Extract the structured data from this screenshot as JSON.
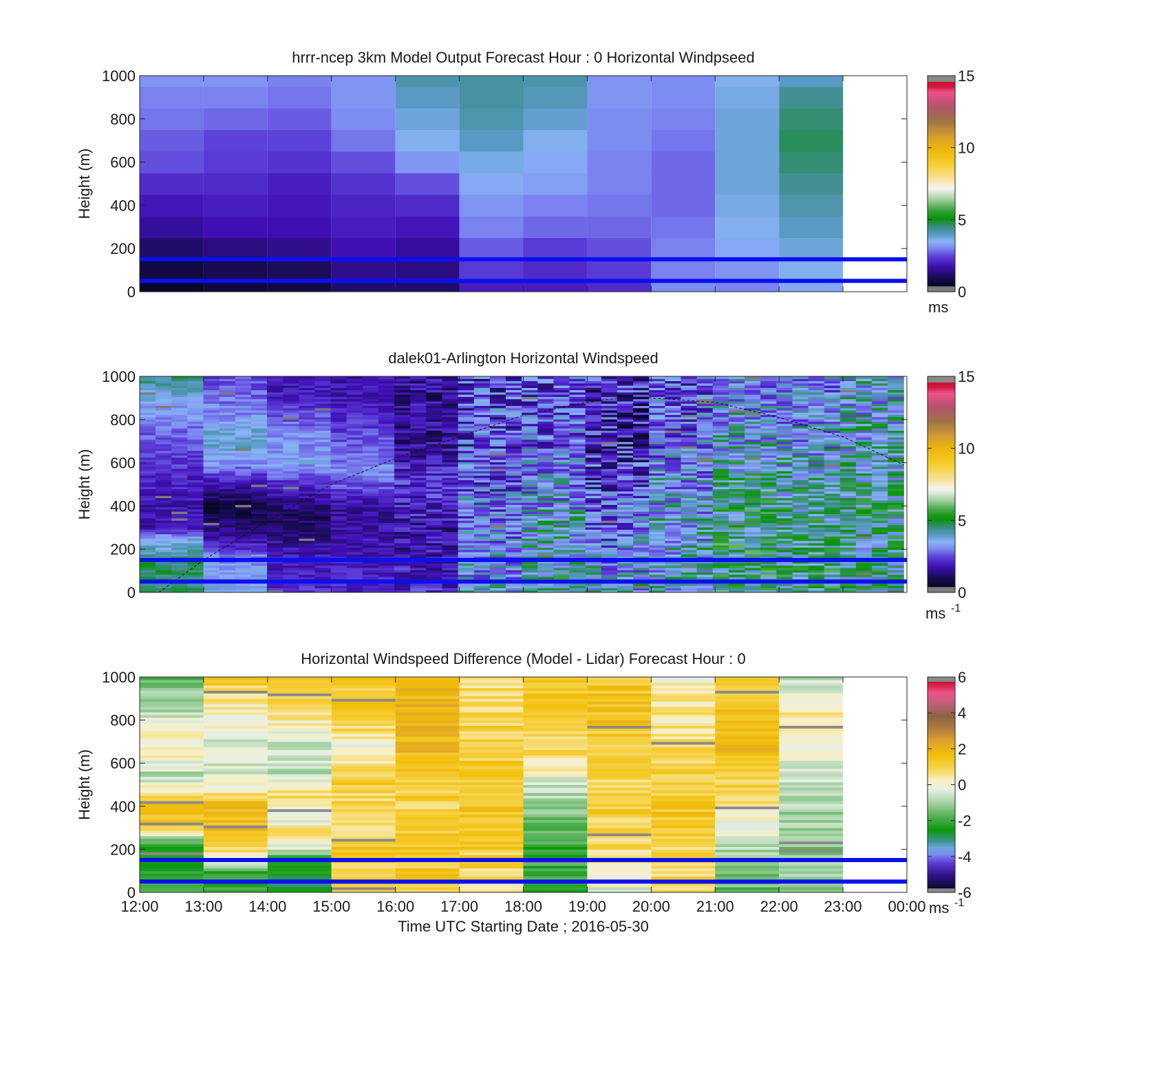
{
  "chart_data": [
    {
      "type": "heatmap",
      "title": "hrrr-ncep 3km Model Output   Forecast Hour : 0 Horizontal Windpseed",
      "xlabel": "",
      "ylabel": "Height (m)",
      "x_ticks": [
        "12:00",
        "13:00",
        "14:00",
        "15:00",
        "16:00",
        "17:00",
        "18:00",
        "19:00",
        "20:00",
        "21:00",
        "22:00",
        "23:00",
        "00:00"
      ],
      "xlim": [
        12,
        24
      ],
      "ylim": [
        0,
        1000
      ],
      "yticks": [
        0,
        200,
        400,
        600,
        800,
        1000
      ],
      "colorbar": {
        "range": [
          0,
          15
        ],
        "ticks": [
          0,
          5,
          10,
          15
        ],
        "unit_base": "ms",
        "unit_sup": ""
      },
      "reference_lines_m": [
        50,
        150
      ],
      "columns": [
        {
          "start_hour": 12,
          "end_hour": 13,
          "values": [
            0.5,
            0.8,
            1.2,
            1.6,
            1.9,
            2.2,
            2.6,
            2.7,
            2.9,
            3.0,
            3.2
          ]
        },
        {
          "start_hour": 13,
          "end_hour": 14,
          "values": [
            0.7,
            1.0,
            1.4,
            1.8,
            2.0,
            2.2,
            2.4,
            2.5,
            2.8,
            3.0,
            3.2
          ]
        },
        {
          "start_hour": 14,
          "end_hour": 15,
          "values": [
            0.8,
            1.1,
            1.5,
            1.8,
            1.9,
            2.0,
            2.3,
            2.5,
            2.7,
            2.9,
            3.0
          ]
        },
        {
          "start_hour": 15,
          "end_hour": 16,
          "values": [
            1.2,
            1.5,
            1.8,
            2.0,
            2.1,
            2.3,
            2.6,
            2.9,
            3.1,
            3.2,
            3.2
          ]
        },
        {
          "start_hour": 16,
          "end_hour": 17,
          "values": [
            1.2,
            1.4,
            1.6,
            1.9,
            2.2,
            2.6,
            3.2,
            3.6,
            3.8,
            4.0,
            4.2
          ]
        },
        {
          "start_hour": 17,
          "end_hour": 18,
          "values": [
            2.0,
            2.4,
            2.7,
            3.0,
            3.2,
            3.4,
            3.7,
            4.0,
            4.2,
            4.3,
            4.3
          ]
        },
        {
          "start_hour": 18,
          "end_hour": 19,
          "values": [
            2.0,
            2.2,
            2.4,
            2.8,
            3.0,
            3.3,
            3.4,
            3.6,
            3.9,
            4.1,
            4.2
          ]
        },
        {
          "start_hour": 19,
          "end_hour": 20,
          "values": [
            2.2,
            2.4,
            2.6,
            2.8,
            2.9,
            3.0,
            3.0,
            3.1,
            3.1,
            3.2,
            3.2
          ]
        },
        {
          "start_hour": 20,
          "end_hour": 21,
          "values": [
            3.1,
            3.0,
            3.0,
            2.9,
            2.8,
            2.8,
            2.8,
            2.9,
            3.0,
            3.1,
            3.1
          ]
        },
        {
          "start_hour": 21,
          "end_hour": 22,
          "values": [
            3.0,
            3.2,
            3.4,
            3.6,
            3.7,
            3.8,
            3.8,
            3.8,
            3.8,
            3.7,
            3.6
          ]
        },
        {
          "start_hour": 22,
          "end_hour": 23,
          "values": [
            3.4,
            3.6,
            3.8,
            4.0,
            4.2,
            4.4,
            4.6,
            4.7,
            4.6,
            4.4,
            4.0
          ]
        }
      ]
    },
    {
      "type": "heatmap",
      "title": "dalek01-Arlington  Horizontal Windspeed",
      "xlabel": "",
      "ylabel": "Height (m)",
      "x_ticks": [
        "12:00",
        "13:00",
        "14:00",
        "15:00",
        "16:00",
        "17:00",
        "18:00",
        "19:00",
        "20:00",
        "21:00",
        "22:00",
        "23:00",
        "00:00"
      ],
      "xlim": [
        12,
        24
      ],
      "ylim": [
        0,
        1000
      ],
      "yticks": [
        0,
        200,
        400,
        600,
        800,
        1000
      ],
      "colorbar": {
        "range": [
          0,
          15
        ],
        "ticks": [
          0,
          5,
          10,
          15
        ],
        "unit_base": "ms",
        "unit_sup": "-1"
      },
      "reference_lines_m": [
        50,
        150
      ],
      "boundary_layer_height": {
        "hours": [
          12.3,
          13.0,
          14.0,
          15.0,
          16.0,
          17.0,
          18.0,
          19.0,
          19.5,
          20.0,
          21.0,
          22.0,
          23.0,
          23.95
        ],
        "heights_m": [
          0,
          150,
          330,
          500,
          620,
          720,
          820,
          880,
          900,
          900,
          880,
          810,
          720,
          590
        ]
      },
      "profile_groups": [
        {
          "start_hour": 12.0,
          "end_hour": 13.0,
          "profile": [
            [
              0,
              4.5
            ],
            [
              120,
              4.8
            ],
            [
              250,
              3.5
            ],
            [
              300,
              1.8
            ],
            [
              420,
              1.8
            ],
            [
              700,
              2.6
            ],
            [
              900,
              3.6
            ],
            [
              1000,
              4.5
            ]
          ]
        },
        {
          "start_hour": 13.0,
          "end_hour": 14.0,
          "profile": [
            [
              0,
              3.6
            ],
            [
              150,
              3.2
            ],
            [
              250,
              1.6
            ],
            [
              400,
              0.8
            ],
            [
              500,
              1.8
            ],
            [
              600,
              3.2
            ],
            [
              700,
              4.0
            ],
            [
              850,
              3.0
            ],
            [
              1000,
              2.5
            ]
          ]
        },
        {
          "start_hour": 14.0,
          "end_hour": 15.0,
          "profile": [
            [
              0,
              2.2
            ],
            [
              200,
              1.8
            ],
            [
              350,
              1.0
            ],
            [
              500,
              2.2
            ],
            [
              600,
              3.4
            ],
            [
              750,
              3.0
            ],
            [
              900,
              2.0
            ],
            [
              1000,
              1.8
            ]
          ]
        },
        {
          "start_hour": 15.0,
          "end_hour": 16.0,
          "profile": [
            [
              0,
              2.2
            ],
            [
              200,
              1.8
            ],
            [
              400,
              1.6
            ],
            [
              550,
              3.2
            ],
            [
              700,
              2.6
            ],
            [
              900,
              1.9
            ],
            [
              1000,
              1.8
            ]
          ]
        },
        {
          "start_hour": 16.0,
          "end_hour": 17.0,
          "profile": [
            [
              0,
              2.0
            ],
            [
              300,
              1.8
            ],
            [
              500,
              2.2
            ],
            [
              700,
              1.5
            ],
            [
              1000,
              1.6
            ]
          ]
        },
        {
          "start_hour": 17.0,
          "end_hour": 18.0,
          "profile": [
            [
              0,
              3.6
            ],
            [
              400,
              3.0
            ],
            [
              700,
              2.6
            ],
            [
              1000,
              2.4
            ]
          ]
        },
        {
          "start_hour": 18.0,
          "end_hour": 19.0,
          "profile": [
            [
              0,
              4.4
            ],
            [
              400,
              3.6
            ],
            [
              700,
              2.8
            ],
            [
              1000,
              2.6
            ]
          ]
        },
        {
          "start_hour": 19.0,
          "end_hour": 20.0,
          "profile": [
            [
              0,
              3.8
            ],
            [
              400,
              2.8
            ],
            [
              700,
              1.8
            ],
            [
              1000,
              2.0
            ]
          ]
        },
        {
          "start_hour": 20.0,
          "end_hour": 21.0,
          "profile": [
            [
              0,
              4.0
            ],
            [
              400,
              3.6
            ],
            [
              700,
              3.0
            ],
            [
              1000,
              2.6
            ]
          ]
        },
        {
          "start_hour": 21.0,
          "end_hour": 22.0,
          "profile": [
            [
              0,
              4.8
            ],
            [
              400,
              4.6
            ],
            [
              700,
              3.8
            ],
            [
              1000,
              3.2
            ]
          ]
        },
        {
          "start_hour": 22.0,
          "end_hour": 23.0,
          "profile": [
            [
              0,
              4.6
            ],
            [
              400,
              4.4
            ],
            [
              700,
              3.6
            ],
            [
              1000,
              3.2
            ]
          ]
        },
        {
          "start_hour": 23.0,
          "end_hour": 23.95,
          "profile": [
            [
              0,
              4.2
            ],
            [
              400,
              4.4
            ],
            [
              700,
              4.0
            ],
            [
              1000,
              3.6
            ]
          ]
        }
      ]
    },
    {
      "type": "heatmap",
      "title": "Horizontal Windspeed Difference (Model - Lidar) Forecast Hour : 0",
      "xlabel": "Time UTC  Starting Date ; 2016-05-30",
      "ylabel": "Height (m)",
      "x_ticks": [
        "12:00",
        "13:00",
        "14:00",
        "15:00",
        "16:00",
        "17:00",
        "18:00",
        "19:00",
        "20:00",
        "21:00",
        "22:00",
        "23:00",
        "00:00"
      ],
      "xlim": [
        12,
        24
      ],
      "ylim": [
        0,
        1000
      ],
      "yticks": [
        0,
        200,
        400,
        600,
        800,
        1000
      ],
      "colorbar": {
        "range": [
          -6,
          6
        ],
        "ticks": [
          -6,
          -4,
          -2,
          0,
          2,
          4,
          6
        ],
        "unit_base": "ms",
        "unit_sup": "-1"
      },
      "reference_lines_m": [
        50,
        150
      ],
      "columns": [
        {
          "start_hour": 12,
          "end_hour": 13,
          "profile": [
            [
              0,
              -1.6
            ],
            [
              100,
              -2.4
            ],
            [
              180,
              -2.6
            ],
            [
              250,
              -1.5
            ],
            [
              300,
              1.2
            ],
            [
              380,
              1.8
            ],
            [
              460,
              0.5
            ],
            [
              550,
              -0.8
            ],
            [
              650,
              0.6
            ],
            [
              800,
              -0.3
            ],
            [
              900,
              -1.2
            ],
            [
              1000,
              -1.6
            ]
          ]
        },
        {
          "start_hour": 13,
          "end_hour": 14,
          "profile": [
            [
              0,
              -2.4
            ],
            [
              100,
              -1.8
            ],
            [
              200,
              0.8
            ],
            [
              300,
              1.8
            ],
            [
              420,
              1.6
            ],
            [
              520,
              -0.3
            ],
            [
              600,
              -0.6
            ],
            [
              700,
              -0.4
            ],
            [
              850,
              0.2
            ],
            [
              950,
              1.0
            ],
            [
              1000,
              1.2
            ]
          ]
        },
        {
          "start_hour": 14,
          "end_hour": 15,
          "profile": [
            [
              0,
              -2.8
            ],
            [
              150,
              -2.4
            ],
            [
              250,
              1.0
            ],
            [
              350,
              -0.3
            ],
            [
              450,
              0.8
            ],
            [
              550,
              -0.8
            ],
            [
              700,
              -0.4
            ],
            [
              850,
              0.6
            ],
            [
              1000,
              1.2
            ]
          ]
        },
        {
          "start_hour": 15,
          "end_hour": 16,
          "profile": [
            [
              0,
              0.8
            ],
            [
              200,
              1.4
            ],
            [
              300,
              0.8
            ],
            [
              450,
              1.0
            ],
            [
              550,
              1.2
            ],
            [
              650,
              -0.2
            ],
            [
              750,
              0.8
            ],
            [
              900,
              1.4
            ],
            [
              1000,
              1.2
            ]
          ]
        },
        {
          "start_hour": 16,
          "end_hour": 17,
          "profile": [
            [
              0,
              1.2
            ],
            [
              200,
              1.4
            ],
            [
              400,
              1.0
            ],
            [
              600,
              1.6
            ],
            [
              800,
              2.2
            ],
            [
              1000,
              1.6
            ]
          ]
        },
        {
          "start_hour": 17,
          "end_hour": 18,
          "profile": [
            [
              0,
              0.6
            ],
            [
              200,
              1.2
            ],
            [
              400,
              1.4
            ],
            [
              600,
              1.2
            ],
            [
              800,
              1.0
            ],
            [
              1000,
              0.8
            ]
          ]
        },
        {
          "start_hour": 18,
          "end_hour": 19,
          "profile": [
            [
              0,
              -2.2
            ],
            [
              200,
              -2.0
            ],
            [
              400,
              -1.2
            ],
            [
              500,
              -0.6
            ],
            [
              600,
              0.6
            ],
            [
              800,
              1.2
            ],
            [
              1000,
              1.4
            ]
          ]
        },
        {
          "start_hour": 19,
          "end_hour": 20,
          "profile": [
            [
              0,
              -0.4
            ],
            [
              200,
              0.8
            ],
            [
              400,
              1.2
            ],
            [
              600,
              0.8
            ],
            [
              800,
              1.6
            ],
            [
              1000,
              1.4
            ]
          ]
        },
        {
          "start_hour": 20,
          "end_hour": 21,
          "profile": [
            [
              0,
              0.8
            ],
            [
              200,
              1.0
            ],
            [
              400,
              1.4
            ],
            [
              600,
              1.0
            ],
            [
              800,
              0.6
            ],
            [
              1000,
              0.2
            ]
          ]
        },
        {
          "start_hour": 21,
          "end_hour": 22,
          "profile": [
            [
              0,
              -1.6
            ],
            [
              200,
              -0.8
            ],
            [
              400,
              0.4
            ],
            [
              600,
              1.6
            ],
            [
              800,
              1.8
            ],
            [
              1000,
              1.2
            ]
          ]
        },
        {
          "start_hour": 22,
          "end_hour": 23,
          "profile": [
            [
              0,
              -1.0
            ],
            [
              200,
              -1.2
            ],
            [
              400,
              -1.0
            ],
            [
              600,
              -0.2
            ],
            [
              800,
              0.4
            ],
            [
              1000,
              -0.6
            ]
          ]
        }
      ]
    }
  ]
}
